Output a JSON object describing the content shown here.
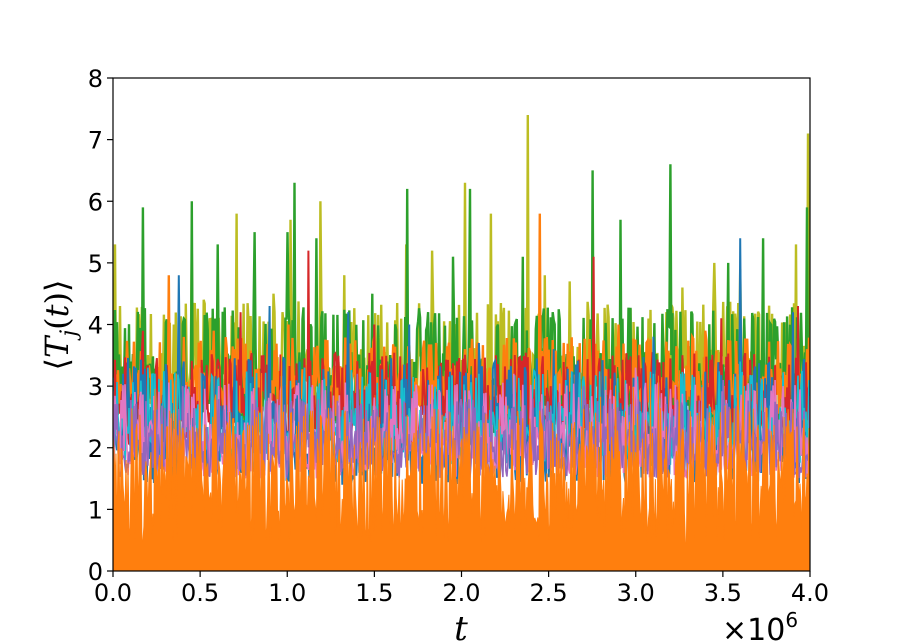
{
  "chart_data": {
    "type": "line",
    "title": "",
    "xlabel": "t",
    "ylabel_parts": [
      "⟨",
      "T",
      "j",
      "(",
      "t",
      ")⟩"
    ],
    "x_offset": {
      "base": "×10",
      "exponent": "6"
    },
    "xlim": [
      0.0,
      4.0
    ],
    "ylim": [
      0,
      8
    ],
    "x_ticks": [
      "0.0",
      "0.5",
      "1.0",
      "1.5",
      "2.0",
      "2.5",
      "3.0",
      "3.5",
      "4.0"
    ],
    "y_ticks": [
      "0",
      "1",
      "2",
      "3",
      "4",
      "5",
      "6",
      "7",
      "8"
    ],
    "grid": false,
    "legend": "none",
    "series": [
      {
        "color": "#bcbd22",
        "peaks": [
          [
            0.01,
            5.3
          ],
          [
            0.04,
            4.3
          ],
          [
            0.45,
            5.2
          ],
          [
            0.52,
            4.4
          ],
          [
            0.71,
            5.8
          ],
          [
            0.92,
            4.5
          ],
          [
            1.02,
            5.7
          ],
          [
            1.19,
            6.0
          ],
          [
            1.33,
            4.8
          ],
          [
            1.68,
            5.3
          ],
          [
            1.83,
            5.2
          ],
          [
            2.02,
            6.3
          ],
          [
            2.17,
            5.8
          ],
          [
            2.38,
            7.4
          ],
          [
            2.48,
            4.8
          ],
          [
            2.62,
            4.7
          ],
          [
            3.27,
            4.6
          ],
          [
            3.45,
            5.0
          ],
          [
            3.6,
            4.9
          ],
          [
            3.92,
            5.3
          ],
          [
            3.99,
            7.1
          ]
        ],
        "base": 3.1,
        "noise": 0.8,
        "lw": 2.4
      },
      {
        "color": "#2ca02c",
        "peaks": [
          [
            0.17,
            5.9
          ],
          [
            0.45,
            6.0
          ],
          [
            0.6,
            5.3
          ],
          [
            0.81,
            5.5
          ],
          [
            1.0,
            5.5
          ],
          [
            1.04,
            6.3
          ],
          [
            1.17,
            5.4
          ],
          [
            1.49,
            4.5
          ],
          [
            1.69,
            6.2
          ],
          [
            1.95,
            5.1
          ],
          [
            2.05,
            6.2
          ],
          [
            2.35,
            5.1
          ],
          [
            2.75,
            6.5
          ],
          [
            2.91,
            5.7
          ],
          [
            3.2,
            6.6
          ],
          [
            3.53,
            5.0
          ],
          [
            3.73,
            5.4
          ],
          [
            3.98,
            5.9
          ]
        ],
        "base": 3.0,
        "noise": 0.8,
        "lw": 2.4
      },
      {
        "color": "#ff7f0e",
        "peaks": [
          [
            0.32,
            4.8
          ],
          [
            0.58,
            3.9
          ],
          [
            1.01,
            4.0
          ],
          [
            1.5,
            3.8
          ],
          [
            2.02,
            3.6
          ],
          [
            2.45,
            5.8
          ],
          [
            2.9,
            4.0
          ],
          [
            3.4,
            3.9
          ],
          [
            3.98,
            3.6
          ]
        ],
        "base": 3.0,
        "noise": 0.5,
        "lw": 2.4
      },
      {
        "color": "#d62728",
        "peaks": [
          [
            0.17,
            3.9
          ],
          [
            0.73,
            4.2
          ],
          [
            1.12,
            5.2
          ],
          [
            1.5,
            4.0
          ],
          [
            2.2,
            3.5
          ],
          [
            2.76,
            5.1
          ],
          [
            3.49,
            4.1
          ],
          [
            3.93,
            4.3
          ]
        ],
        "base": 2.6,
        "noise": 0.6,
        "lw": 2.0
      },
      {
        "color": "#1f77b4",
        "peaks": [
          [
            0.38,
            4.8
          ],
          [
            0.9,
            4.3
          ],
          [
            1.35,
            4.2
          ],
          [
            1.7,
            4.0
          ],
          [
            2.1,
            3.7
          ],
          [
            2.53,
            3.6
          ],
          [
            3.1,
            3.8
          ],
          [
            3.6,
            5.4
          ],
          [
            3.9,
            4.2
          ]
        ],
        "base": 2.2,
        "noise": 0.8,
        "lw": 2.0
      },
      {
        "color": "#17becf",
        "peaks": [
          [
            0.2,
            3.3
          ],
          [
            0.6,
            3.1
          ],
          [
            1.1,
            3.3
          ],
          [
            1.6,
            3.0
          ],
          [
            2.1,
            3.2
          ],
          [
            2.6,
            3.1
          ],
          [
            3.1,
            3.2
          ],
          [
            3.6,
            3.4
          ]
        ],
        "base": 2.3,
        "noise": 0.6,
        "lw": 1.6
      },
      {
        "color": "#e377c2",
        "peaks": [
          [
            0.5,
            3.3
          ],
          [
            1.2,
            3.1
          ],
          [
            2.3,
            3.2
          ],
          [
            3.0,
            3.3
          ],
          [
            3.8,
            3.1
          ]
        ],
        "base": 2.1,
        "noise": 0.6,
        "lw": 1.6
      },
      {
        "color": "#9467bd",
        "peaks": [
          [
            0.4,
            3.0
          ],
          [
            1.4,
            3.2
          ],
          [
            2.7,
            3.0
          ],
          [
            3.5,
            3.1
          ]
        ],
        "base": 2.0,
        "noise": 0.5,
        "lw": 1.6
      }
    ],
    "fill": {
      "color": "#ff7f0e",
      "base": 1.55,
      "noise": 1.1
    }
  }
}
